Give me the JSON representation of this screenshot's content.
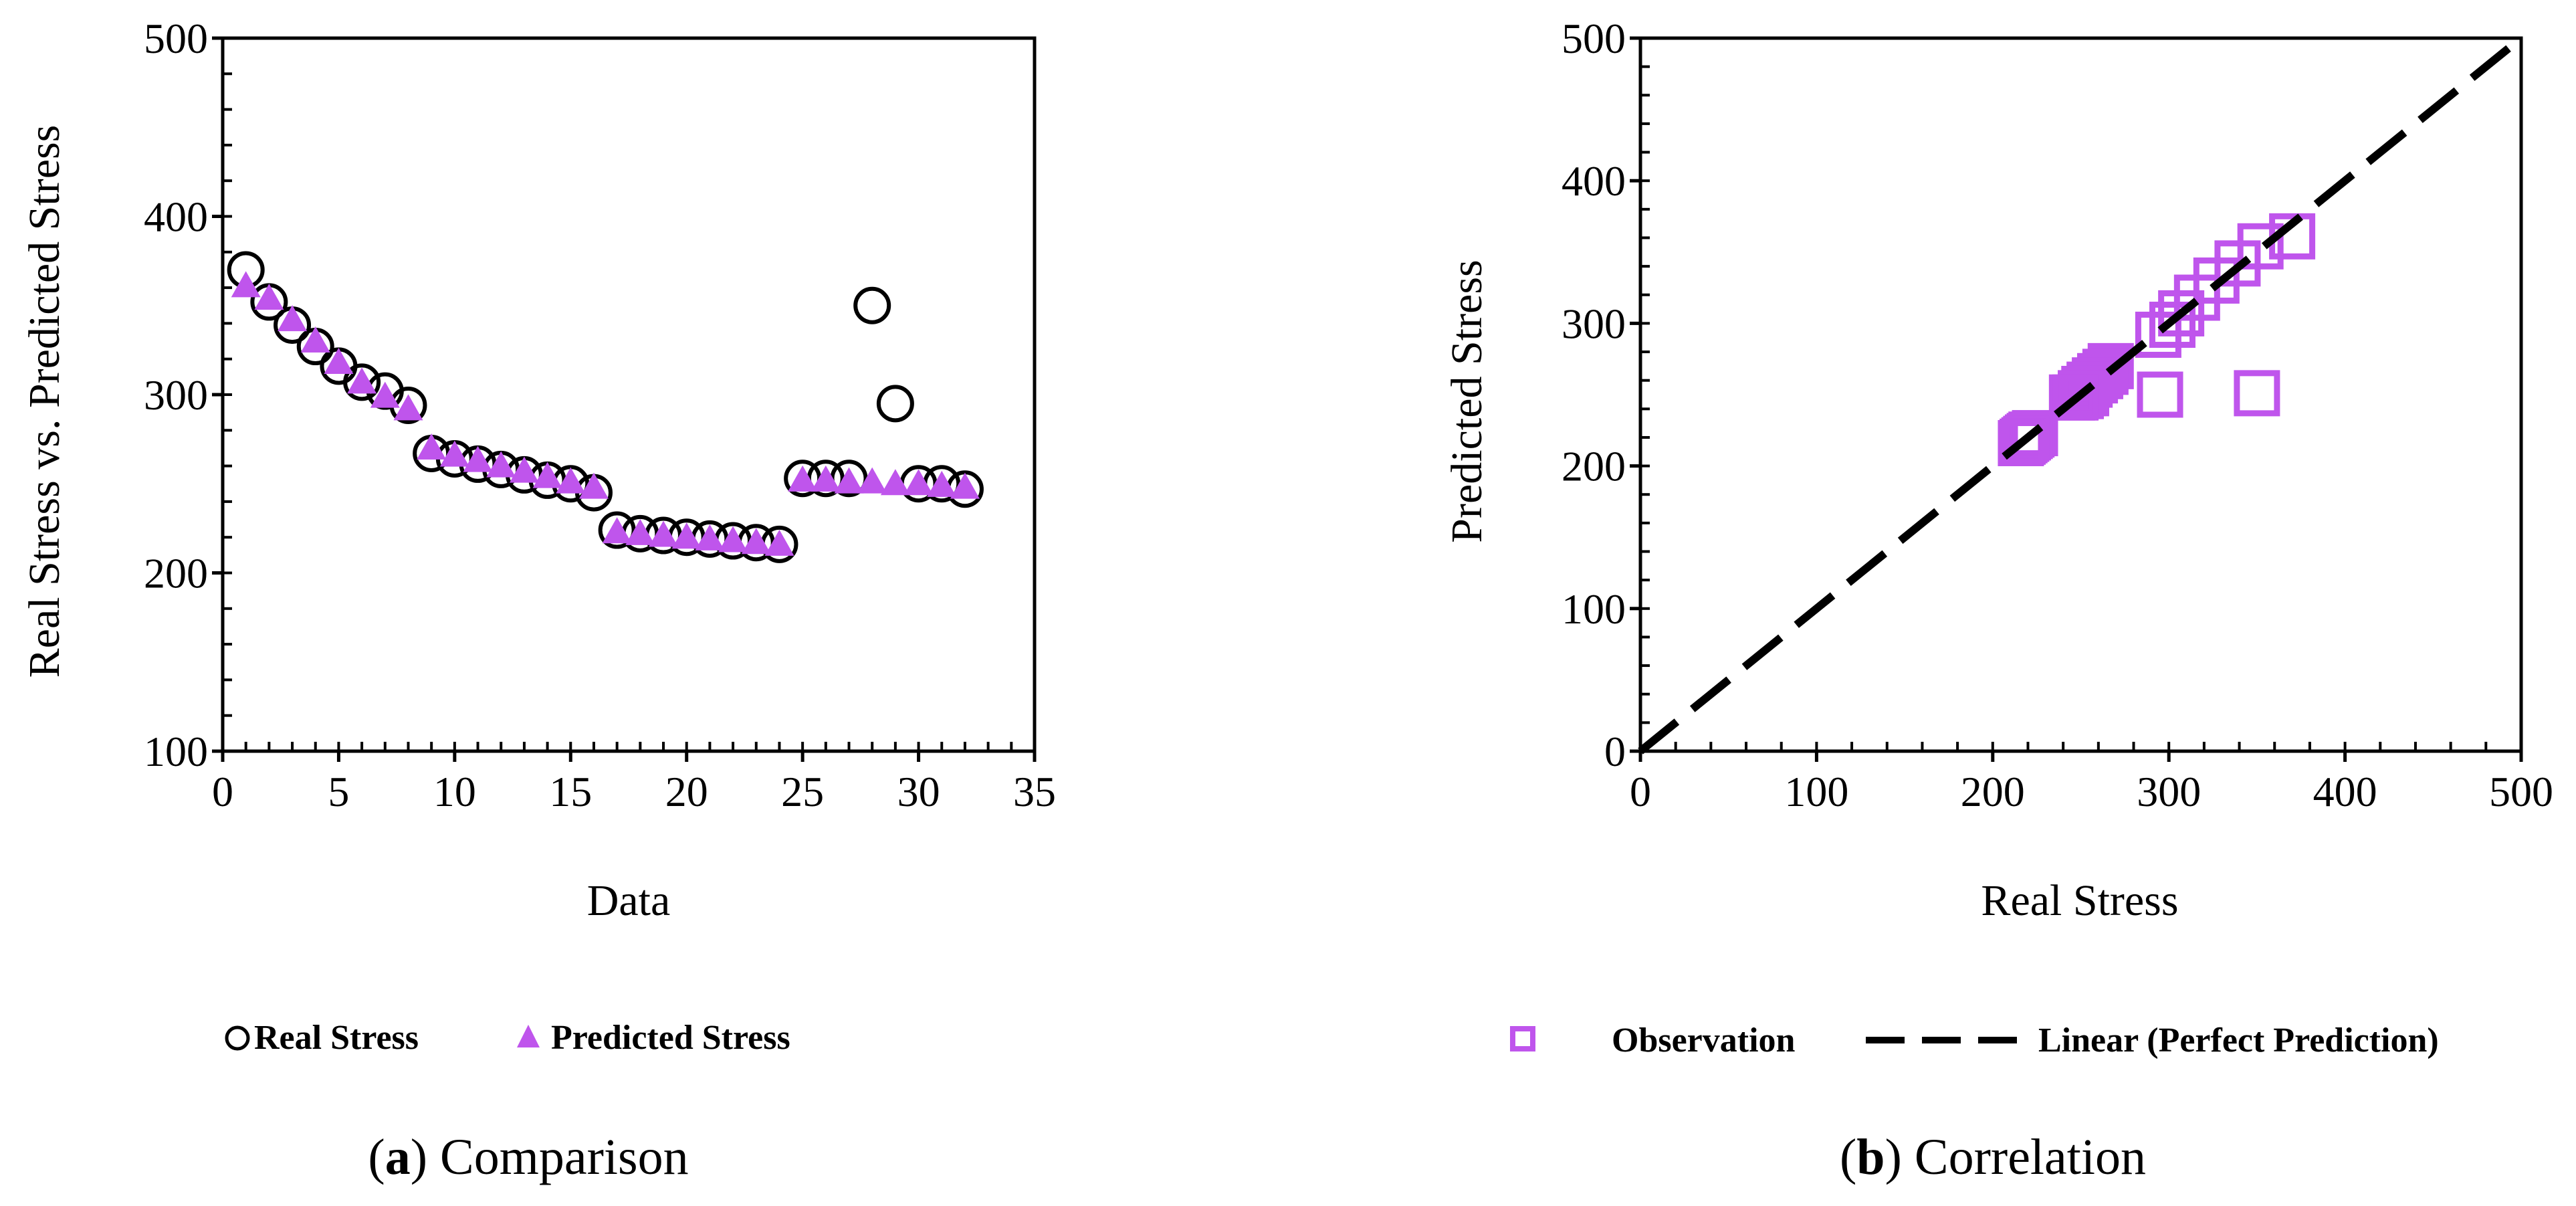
{
  "chart_data": [
    {
      "id": "a",
      "type": "scatter",
      "caption_letter": "a",
      "caption_text": "Comparison",
      "xlabel": "Data",
      "ylabel": "Real Stress  vs. Predicted Stress",
      "xlim": [
        0,
        35
      ],
      "ylim": [
        100,
        500
      ],
      "xticks": [
        0,
        5,
        10,
        15,
        20,
        25,
        30,
        35
      ],
      "yticks": [
        100,
        200,
        300,
        400,
        500
      ],
      "x_minor_step": 1,
      "y_minor_step": 20,
      "grid": false,
      "legend_position": "bottom",
      "series": [
        {
          "name": "Real Stress",
          "marker": "open-circle",
          "color": "#000000",
          "x": [
            1,
            2,
            3,
            4,
            5,
            6,
            7,
            8,
            9,
            10,
            11,
            12,
            13,
            14,
            15,
            16,
            17,
            18,
            19,
            20,
            21,
            22,
            23,
            24,
            25,
            26,
            27,
            28,
            29,
            30,
            31,
            32
          ],
          "y": [
            370,
            352,
            339,
            327,
            316,
            307,
            302,
            294,
            267,
            264,
            261,
            258,
            255,
            252,
            250,
            245,
            224,
            222,
            221,
            220,
            219,
            218,
            217,
            216,
            253,
            253,
            253,
            350,
            295,
            250,
            250,
            247
          ]
        },
        {
          "name": "Predicted Stress",
          "marker": "filled-triangle",
          "color": "#bf55ec",
          "x": [
            1,
            2,
            3,
            4,
            5,
            6,
            7,
            8,
            9,
            10,
            11,
            12,
            13,
            14,
            15,
            16,
            17,
            18,
            19,
            20,
            21,
            22,
            23,
            24,
            25,
            26,
            27,
            28,
            29,
            30,
            31,
            32
          ],
          "y": [
            361,
            354,
            342,
            330,
            318,
            307,
            299,
            292,
            270,
            266,
            263,
            260,
            257,
            254,
            251,
            248,
            223,
            222,
            221,
            220,
            219,
            218,
            217,
            216,
            252,
            252,
            251,
            251,
            250,
            250,
            249,
            248
          ]
        }
      ]
    },
    {
      "id": "b",
      "type": "scatter",
      "caption_letter": "b",
      "caption_text": "Correlation",
      "xlabel": "Real Stress",
      "ylabel": "Predicted Stress",
      "xlim": [
        0,
        500
      ],
      "ylim": [
        0,
        500
      ],
      "xticks": [
        0,
        100,
        200,
        300,
        400,
        500
      ],
      "yticks": [
        0,
        100,
        200,
        300,
        400,
        500
      ],
      "x_minor_step": 20,
      "y_minor_step": 20,
      "grid": false,
      "legend_position": "bottom",
      "series": [
        {
          "name": "Observation",
          "marker": "open-square",
          "color": "#bf55ec",
          "x": [
            370,
            352,
            339,
            327,
            316,
            307,
            302,
            294,
            267,
            264,
            261,
            258,
            255,
            252,
            250,
            245,
            224,
            222,
            221,
            220,
            219,
            218,
            217,
            216,
            253,
            253,
            253,
            350,
            295,
            250,
            250,
            247
          ],
          "y": [
            361,
            354,
            342,
            330,
            318,
            307,
            299,
            292,
            270,
            266,
            263,
            260,
            257,
            254,
            251,
            248,
            223,
            222,
            221,
            220,
            219,
            218,
            217,
            216,
            252,
            252,
            251,
            251,
            250,
            250,
            249,
            248
          ]
        },
        {
          "name": "Linear (Perfect Prediction)",
          "marker": "dashed-line",
          "color": "#000000",
          "x": [
            0,
            500
          ],
          "y": [
            0,
            500
          ]
        }
      ]
    }
  ]
}
